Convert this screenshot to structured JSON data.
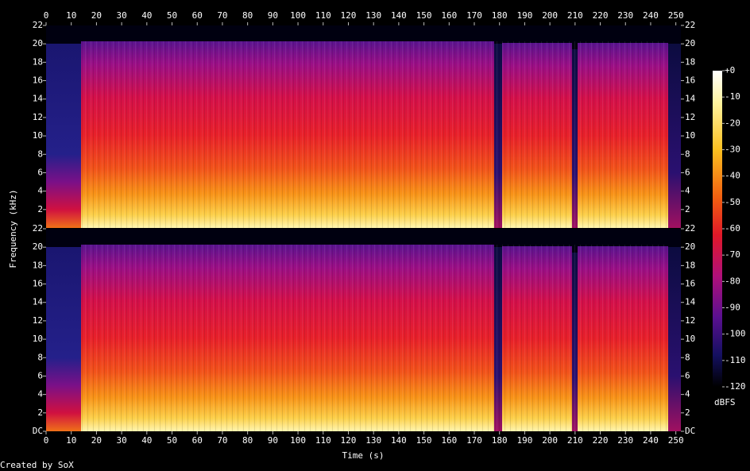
{
  "chart_data": [
    {
      "type": "spectrogram",
      "xlim": [
        0,
        252
      ],
      "xticks": [
        0,
        10,
        20,
        30,
        40,
        50,
        60,
        70,
        80,
        90,
        100,
        110,
        120,
        130,
        140,
        150,
        160,
        170,
        180,
        190,
        200,
        210,
        220,
        230,
        240,
        250
      ],
      "ylim": [
        0,
        22
      ],
      "yticks": [
        2,
        4,
        6,
        8,
        10,
        12,
        14,
        16,
        18,
        20,
        22
      ]
    },
    {
      "type": "spectrogram",
      "x_label": "Time (s)",
      "y_label": "Frequency (kHz)",
      "xlim": [
        0,
        252
      ],
      "xticks": [
        0,
        10,
        20,
        30,
        40,
        50,
        60,
        70,
        80,
        90,
        100,
        110,
        120,
        130,
        140,
        150,
        160,
        170,
        180,
        190,
        200,
        210,
        220,
        230,
        240,
        250
      ],
      "ylim": [
        0,
        22
      ],
      "yticks": [
        {
          "value": 0,
          "label": "DC"
        },
        2,
        4,
        6,
        8,
        10,
        12,
        14,
        16,
        18,
        20,
        22
      ]
    },
    {
      "type": "colorbar",
      "label": "dBFS",
      "ylim": [
        -120,
        0
      ],
      "yticks": [
        -120,
        -110,
        -100,
        -90,
        -80,
        -70,
        -60,
        -50,
        -40,
        -30,
        -20,
        -10,
        {
          "value": 0,
          "label": "+0"
        }
      ]
    }
  ],
  "footer": "Created by SoX"
}
